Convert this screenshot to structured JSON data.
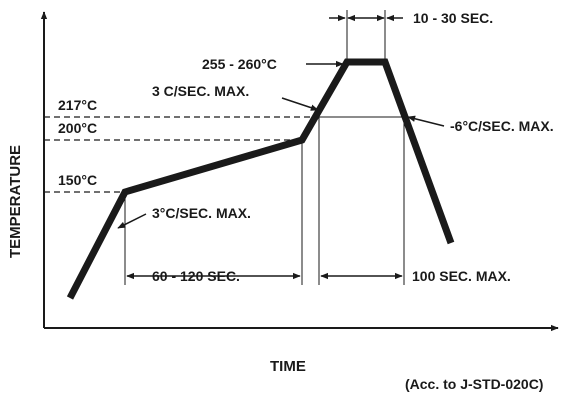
{
  "diagram": {
    "type": "reflow-temperature-profile",
    "labels": {
      "peak_temperature": "255 - 260°C",
      "dwell_time": "10 - 30 SEC.",
      "temp_217": "217°C",
      "temp_200": "200°C",
      "temp_150": "150°C",
      "ramp_to_peak": "3 C/SEC. MAX.",
      "ramp_down": "-6°C/SEC. MAX.",
      "ramp_up": "3°C/SEC. MAX.",
      "soak_time": "60 - 120 SEC.",
      "time_above_liquidus": "100 SEC. MAX.",
      "x_axis": "TIME",
      "y_axis": "TEMPERATURE",
      "standard_note": "(Acc. to J-STD-020C)"
    },
    "colors": {
      "profile_line": "#1a1a1a",
      "guide_lines": "#1a1a1a",
      "text": "#1a1a1a"
    }
  }
}
